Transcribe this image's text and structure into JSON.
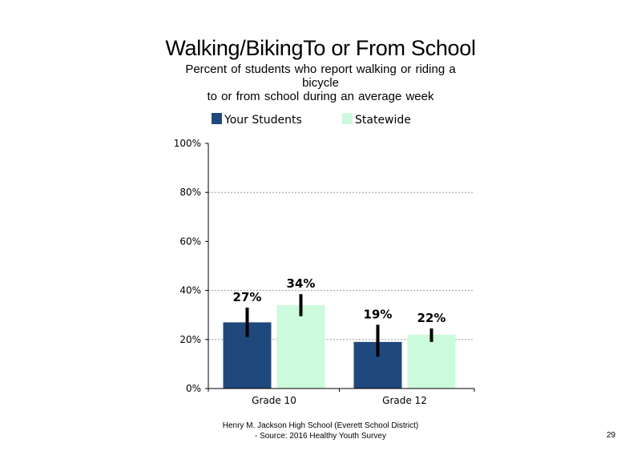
{
  "chart_data": {
    "type": "bar",
    "title": "Walking/BikingTo or From School",
    "subtitle_lines": [
      "Percent of students who report walking or riding a",
      "bicycle",
      "to or from school during an average week"
    ],
    "categories": [
      "Grade 10",
      "Grade 12"
    ],
    "series": [
      {
        "name": "Your Students",
        "color": "#1f497d",
        "values": [
          27,
          19
        ],
        "labels": [
          "27%",
          "19%"
        ],
        "error_low": [
          21,
          13
        ],
        "error_high": [
          33,
          26
        ]
      },
      {
        "name": "Statewide",
        "color": "#ccfadc",
        "values": [
          34,
          22
        ],
        "labels": [
          "34%",
          "22%"
        ],
        "error_low": [
          29.5,
          19
        ],
        "error_high": [
          38.5,
          24.5
        ]
      }
    ],
    "ylim": [
      0,
      100
    ],
    "yticks": [
      "0%",
      "20%",
      "40%",
      "60%",
      "80%",
      "100%"
    ],
    "ytick_values": [
      0,
      20,
      40,
      60,
      80,
      100
    ],
    "gridlines": [
      20,
      40,
      80
    ],
    "legend_position": "top"
  },
  "footer": {
    "line1": "Henry M. Jackson High School (Everett School District)",
    "line2": "- Source: 2016 Healthy Youth Survey"
  },
  "page_number": "29"
}
